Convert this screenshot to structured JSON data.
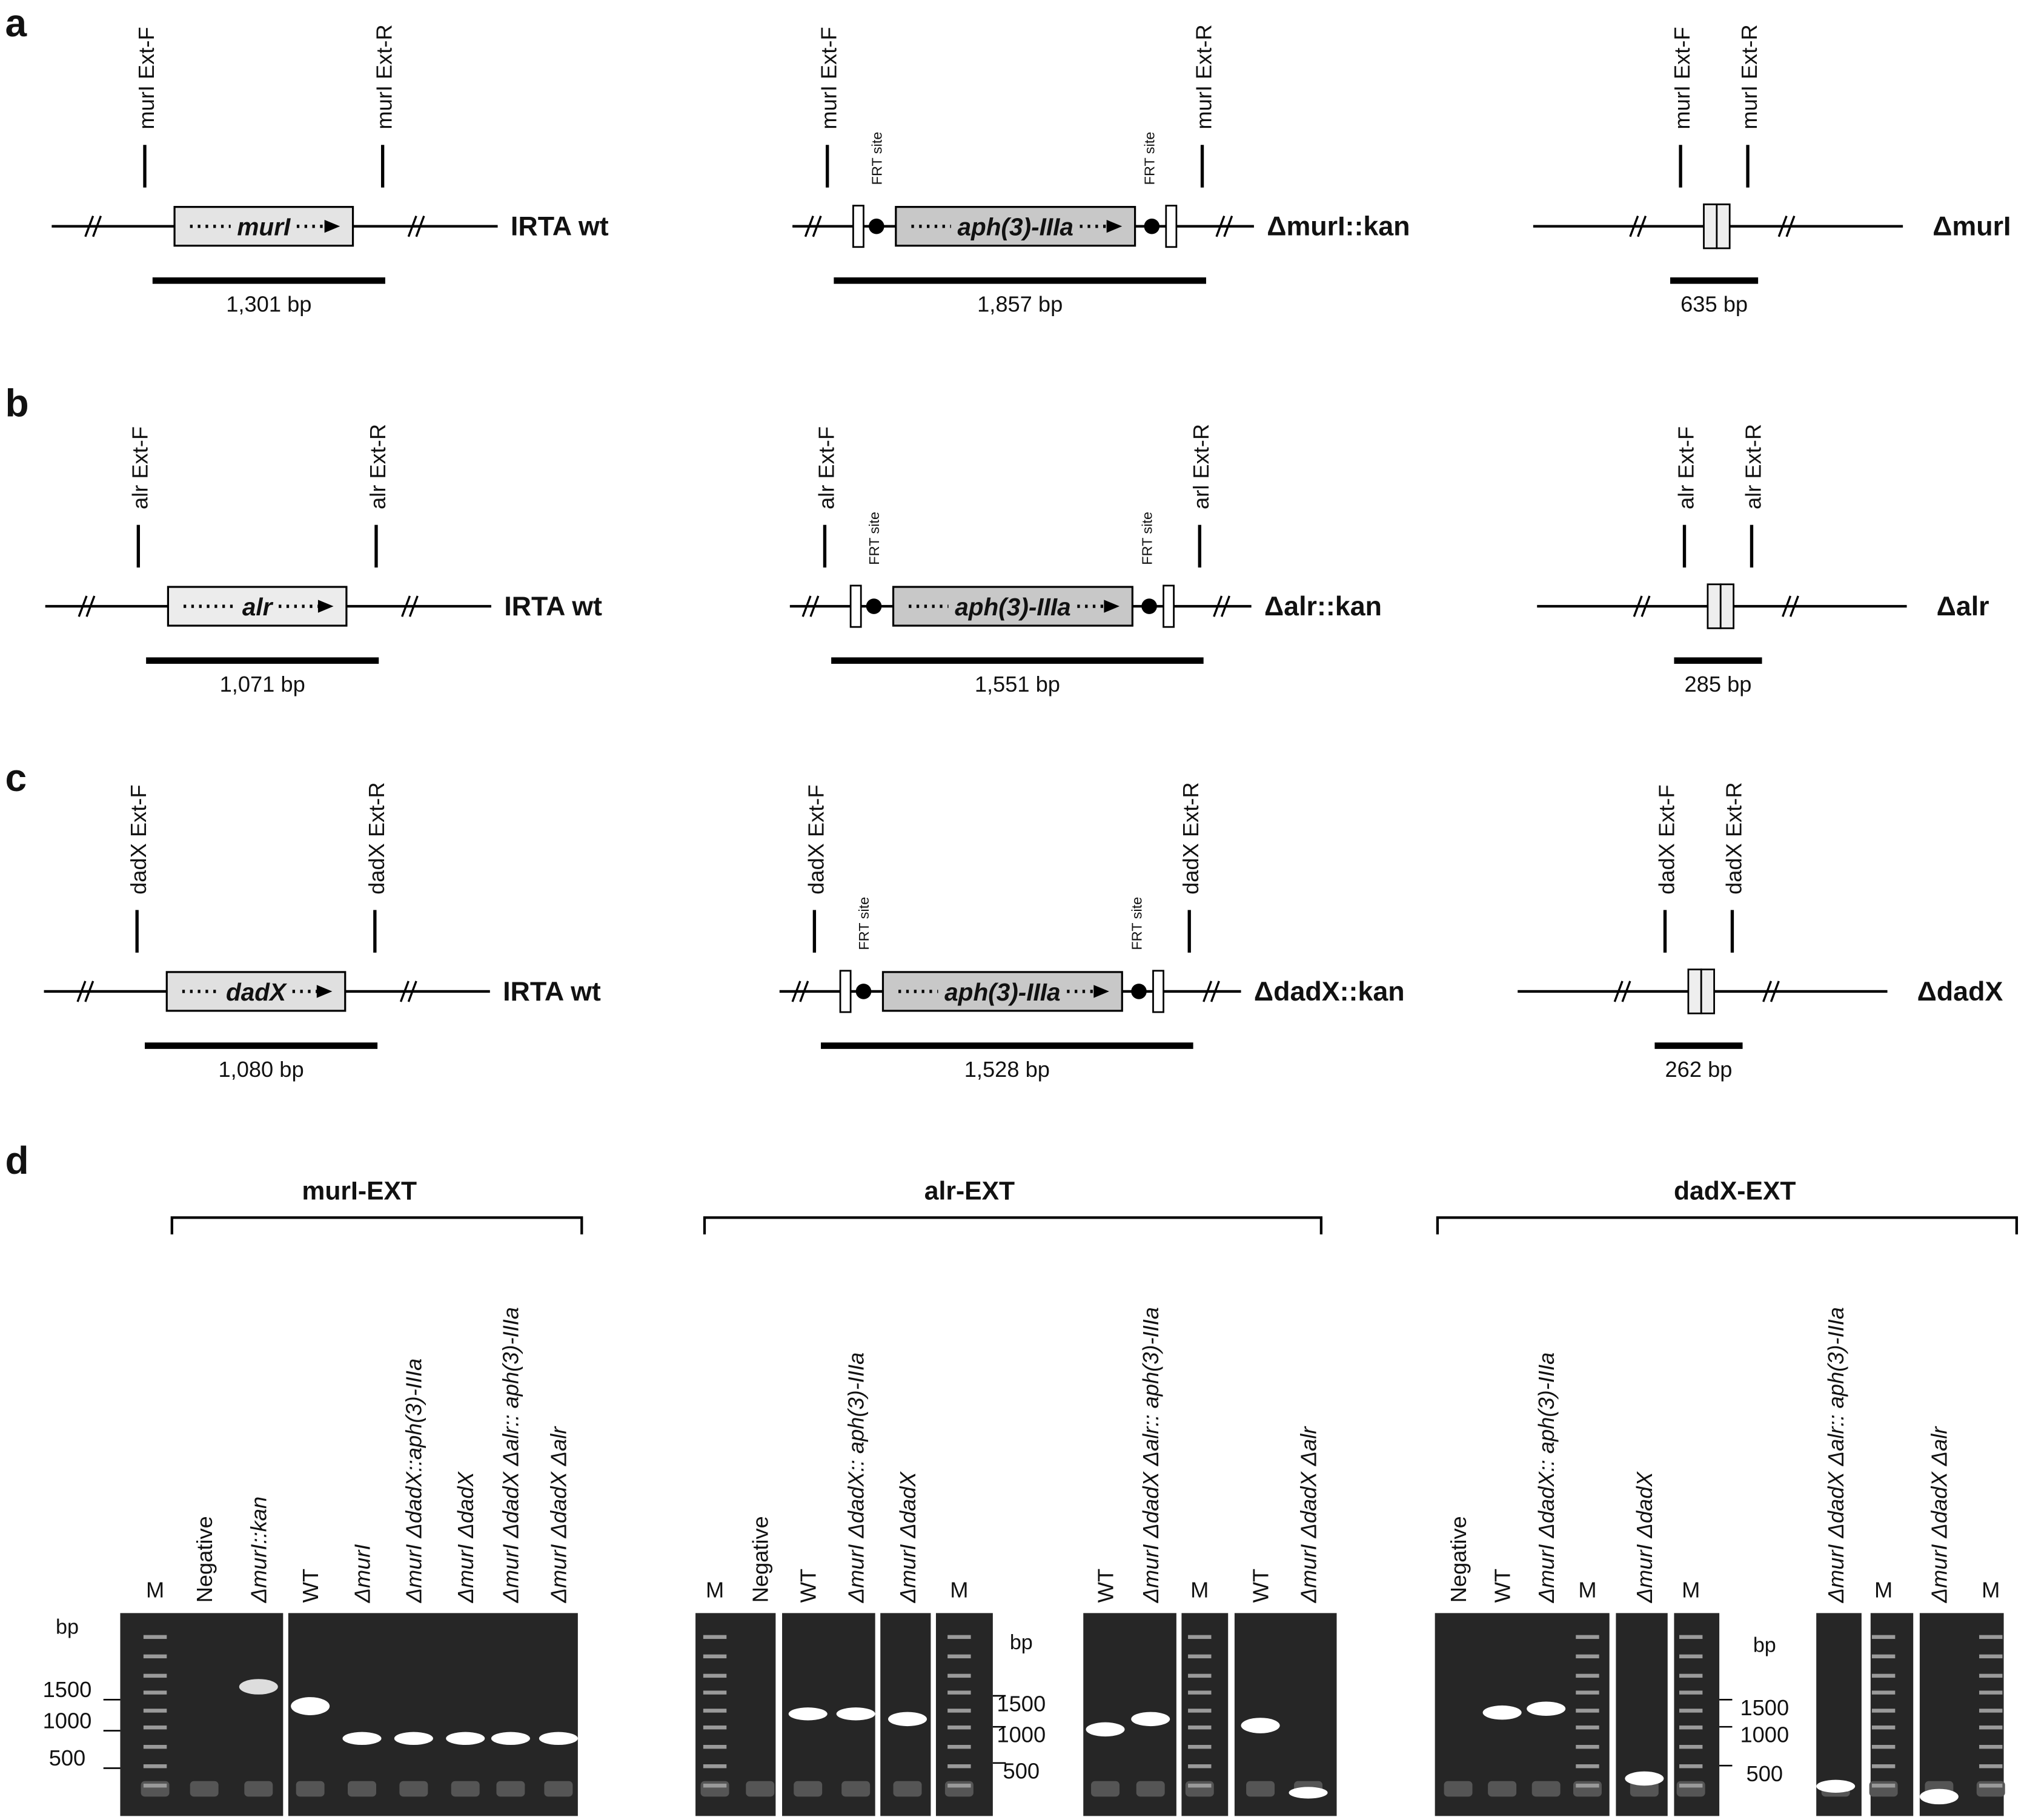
{
  "panels": [
    {
      "letter": "a",
      "constructs": [
        {
          "fwd": "murI Ext-F",
          "rev": "murI Ext-R",
          "gene": "murI",
          "strain": "IRTA wt",
          "size": "1,301 bp"
        },
        {
          "fwd": "murI Ext-F",
          "rev": "murI Ext-R",
          "frt_left": "FRT site",
          "frt_right": "FRT site",
          "gene": "aph(3)-IIIa",
          "strain": "ΔmurI::kan",
          "size": "1,857 bp"
        },
        {
          "fwd": "murI Ext-F",
          "rev": "murI Ext-R",
          "strain": "ΔmurI",
          "size": "635 bp"
        }
      ]
    },
    {
      "letter": "b",
      "constructs": [
        {
          "fwd": "alr Ext-F",
          "rev": "alr Ext-R",
          "gene": "alr",
          "strain": "IRTA wt",
          "size": "1,071 bp"
        },
        {
          "fwd": "alr Ext-F",
          "rev": "arl Ext-R",
          "frt_left": "FRT site",
          "frt_right": "FRT site",
          "gene": "aph(3)-IIIa",
          "strain": "Δalr::kan",
          "size": "1,551 bp"
        },
        {
          "fwd": "alr Ext-F",
          "rev": "alr Ext-R",
          "strain": "Δalr",
          "size": "285 bp"
        }
      ]
    },
    {
      "letter": "c",
      "constructs": [
        {
          "fwd": "dadX Ext-F",
          "rev": "dadX Ext-R",
          "gene": "dadX",
          "strain": "IRTA wt",
          "size": "1,080 bp"
        },
        {
          "fwd": "dadX Ext-F",
          "rev": "dadX Ext-R",
          "frt_left": "FRT site",
          "frt_right": "FRT site",
          "gene": "aph(3)-IIIa",
          "strain": "ΔdadX::kan",
          "size": "1,528 bp"
        },
        {
          "fwd": "dadX Ext-F",
          "rev": "dadX Ext-R",
          "strain": "ΔdadX",
          "size": "262 bp"
        }
      ]
    }
  ],
  "gel": {
    "letter": "d",
    "groups": [
      {
        "title": "murI-EXT",
        "lanes": [
          "M",
          "Negative",
          "ΔmurI::kan",
          "WT",
          "ΔmurI",
          "ΔmurI ΔdadX::aph(3)-IIIa",
          "ΔmurI ΔdadX",
          "ΔmurI ΔdadX Δalr:: aph(3)-IIIa",
          "ΔmurI ΔdadX Δalr"
        ],
        "ladder": {
          "unit": "bp",
          "marks": [
            "1500",
            "1000",
            "500"
          ]
        }
      },
      {
        "title": "alr-EXT",
        "lanes": [
          "M",
          "Negative",
          "WT",
          "ΔmurI ΔdadX:: aph(3)-IIIa",
          "ΔmurI ΔdadX",
          "M",
          "WT",
          "ΔmurI ΔdadX Δalr:: aph(3)-IIIa",
          "M",
          "WT",
          "ΔmurI ΔdadX Δalr"
        ],
        "ladder": {
          "unit": "bp",
          "marks": [
            "1500",
            "1000",
            "500"
          ]
        }
      },
      {
        "title": "dadX-EXT",
        "lanes": [
          "Negative",
          "WT",
          "ΔmurI ΔdadX:: aph(3)-IIIa",
          "M",
          "ΔmurI ΔdadX",
          "M",
          "ΔmurI ΔdadX Δalr:: aph(3)-IIIa",
          "M",
          "ΔmurI ΔdadX Δalr",
          "M"
        ],
        "ladder": {
          "unit": "bp",
          "marks": [
            "1500",
            "1000",
            "500"
          ]
        }
      }
    ]
  }
}
